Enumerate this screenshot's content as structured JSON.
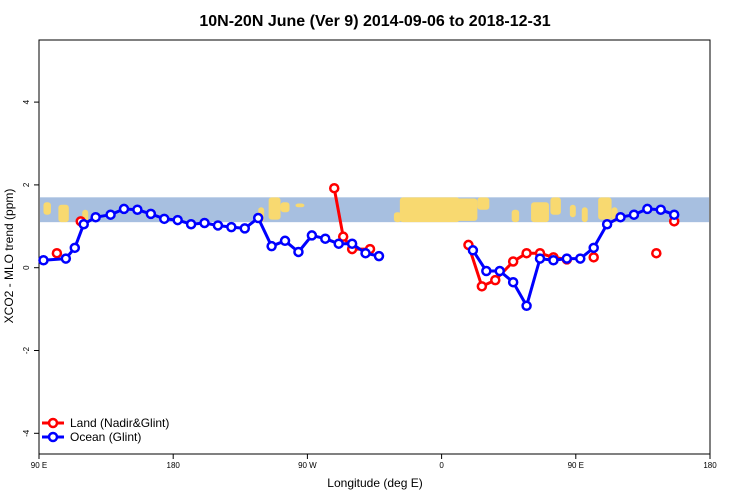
{
  "chart_data": {
    "type": "line",
    "title": "10N-20N June (Ver 9)   2014-09-06 to 2018-12-31",
    "xlabel": "Longitude (deg E)",
    "ylabel": "XCO2 - MLO trend (ppm)",
    "xlim": [
      90,
      450
    ],
    "ylim": [
      -4.5,
      5.5
    ],
    "x_ticks": [
      {
        "value": 90,
        "label": "90 E"
      },
      {
        "value": 180,
        "label": "180"
      },
      {
        "value": 270,
        "label": "90 W"
      },
      {
        "value": 360,
        "label": "0"
      },
      {
        "value": 450,
        "label": "90 E"
      },
      {
        "value": 540,
        "label": "180"
      }
    ],
    "y_ticks": [
      {
        "value": -4,
        "label": "-4"
      },
      {
        "value": -2,
        "label": "-2"
      },
      {
        "value": 0,
        "label": "0"
      },
      {
        "value": 2,
        "label": "2"
      },
      {
        "value": 4,
        "label": "4"
      }
    ],
    "map_band": {
      "ymin": 1.1,
      "ymax": 1.7,
      "ocean_color": "#a7bfe0",
      "land_color": "#f8d970"
    },
    "legend_position": "bottom-left",
    "series": [
      {
        "name": "Land (Nadir&Glint)",
        "color": "#ff0000",
        "segments": [
          [
            {
              "x": 102,
              "y": 0.35
            }
          ],
          [
            {
              "x": 118,
              "y": 1.12
            }
          ],
          [
            {
              "x": 288,
              "y": 1.92
            },
            {
              "x": 294,
              "y": 0.75
            },
            {
              "x": 300,
              "y": 0.45
            },
            {
              "x": 312,
              "y": 0.45
            }
          ],
          [
            {
              "x": 378,
              "y": 0.55
            },
            {
              "x": 387,
              "y": -0.45
            },
            {
              "x": 396,
              "y": -0.3
            },
            {
              "x": 408,
              "y": 0.15
            },
            {
              "x": 417,
              "y": 0.35
            },
            {
              "x": 426,
              "y": 0.35
            },
            {
              "x": 435,
              "y": 0.25
            },
            {
              "x": 444,
              "y": 0.2
            }
          ],
          [
            {
              "x": 462,
              "y": 0.25
            }
          ],
          [
            {
              "x": 504,
              "y": 0.35
            }
          ],
          [
            {
              "x": 516,
              "y": 1.12
            }
          ]
        ]
      },
      {
        "name": "Ocean (Glint)",
        "color": "#0000ff",
        "segments": [
          [
            {
              "x": 93,
              "y": 0.18
            },
            {
              "x": 108,
              "y": 0.22
            },
            {
              "x": 114,
              "y": 0.48
            },
            {
              "x": 120,
              "y": 1.05
            },
            {
              "x": 128,
              "y": 1.22
            },
            {
              "x": 138,
              "y": 1.28
            },
            {
              "x": 147,
              "y": 1.42
            },
            {
              "x": 156,
              "y": 1.4
            },
            {
              "x": 165,
              "y": 1.3
            },
            {
              "x": 174,
              "y": 1.18
            },
            {
              "x": 183,
              "y": 1.15
            },
            {
              "x": 192,
              "y": 1.05
            },
            {
              "x": 201,
              "y": 1.08
            },
            {
              "x": 210,
              "y": 1.02
            },
            {
              "x": 219,
              "y": 0.98
            },
            {
              "x": 228,
              "y": 0.95
            },
            {
              "x": 237,
              "y": 1.2
            },
            {
              "x": 246,
              "y": 0.52
            },
            {
              "x": 255,
              "y": 0.65
            },
            {
              "x": 264,
              "y": 0.38
            },
            {
              "x": 273,
              "y": 0.78
            },
            {
              "x": 282,
              "y": 0.7
            },
            {
              "x": 291,
              "y": 0.58
            },
            {
              "x": 300,
              "y": 0.58
            },
            {
              "x": 309,
              "y": 0.35
            },
            {
              "x": 318,
              "y": 0.28
            }
          ]
        ]
      },
      {
        "name": "",
        "color": "#0000ff",
        "legend": false,
        "segments": [
          [
            {
              "x": 381,
              "y": 0.42
            },
            {
              "x": 390,
              "y": -0.08
            },
            {
              "x": 399,
              "y": -0.08
            },
            {
              "x": 408,
              "y": -0.35
            },
            {
              "x": 417,
              "y": -0.92
            },
            {
              "x": 426,
              "y": 0.22
            },
            {
              "x": 435,
              "y": 0.18
            },
            {
              "x": 444,
              "y": 0.22
            },
            {
              "x": 453,
              "y": 0.22
            },
            {
              "x": 462,
              "y": 0.48
            },
            {
              "x": 471,
              "y": 1.05
            },
            {
              "x": 480,
              "y": 1.22
            },
            {
              "x": 489,
              "y": 1.28
            },
            {
              "x": 498,
              "y": 1.42
            },
            {
              "x": 507,
              "y": 1.4
            },
            {
              "x": 516,
              "y": 1.28
            }
          ]
        ]
      }
    ]
  }
}
